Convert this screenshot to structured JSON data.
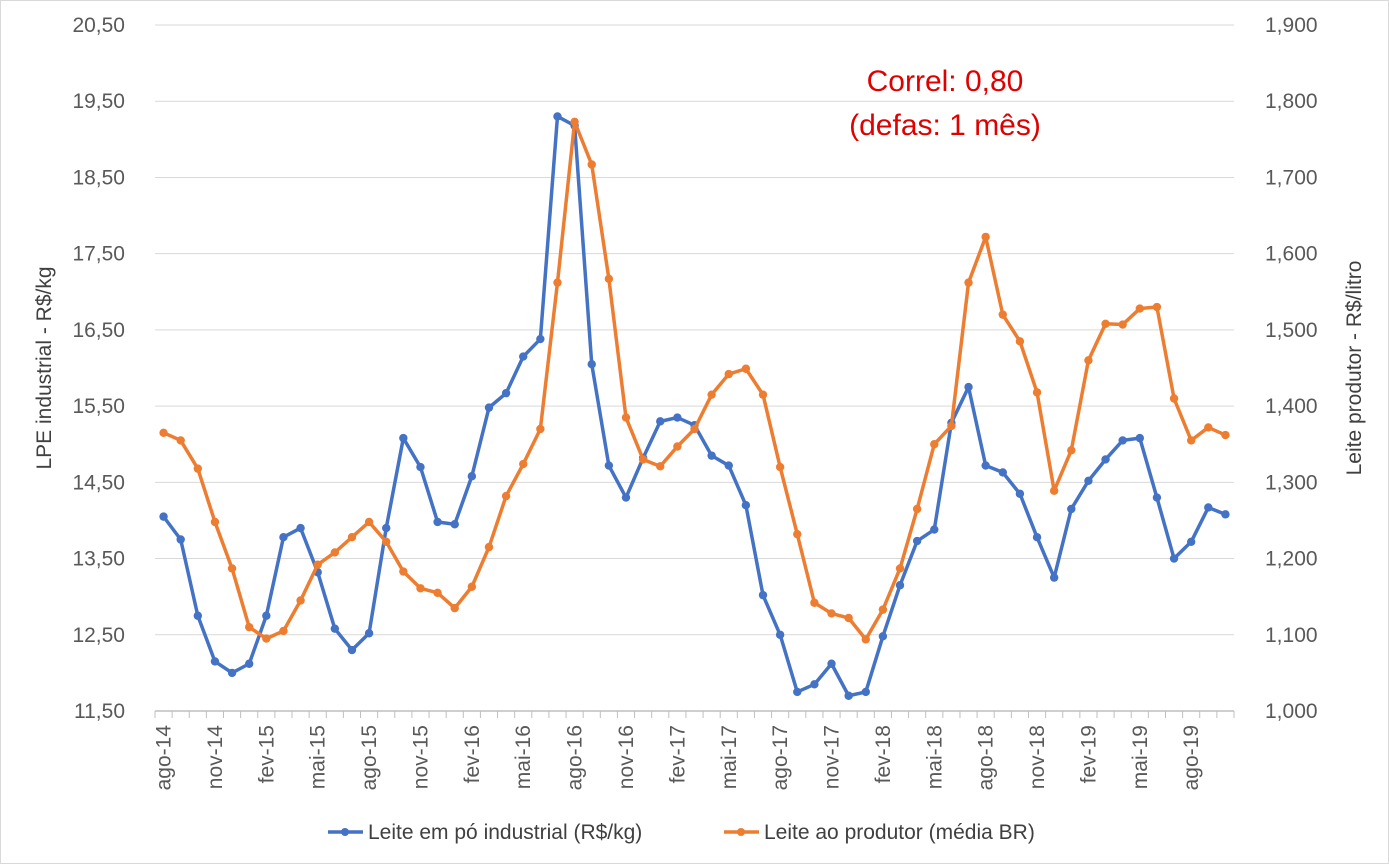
{
  "chart_data": {
    "type": "line",
    "annotation": [
      "Correl: 0,80",
      "(defas: 1 mês)"
    ],
    "y_left": {
      "label": "LPE industrial - R$/kg",
      "min": 11.5,
      "max": 20.5,
      "ticks": [
        "11,50",
        "12,50",
        "13,50",
        "14,50",
        "15,50",
        "16,50",
        "17,50",
        "18,50",
        "19,50",
        "20,50"
      ]
    },
    "y_right": {
      "label": "Leite produtor - R$/litro",
      "min": 1.0,
      "max": 1.9,
      "ticks": [
        "1,000",
        "1,100",
        "1,200",
        "1,300",
        "1,400",
        "1,500",
        "1,600",
        "1,700",
        "1,800",
        "1,900"
      ]
    },
    "grid": true,
    "legend_position": "bottom",
    "colors": {
      "series1": "#4472c4",
      "series2": "#ed7d31",
      "grid": "#d9d9d9"
    },
    "x": [
      "ago-14",
      "set-14",
      "out-14",
      "nov-14",
      "dez-14",
      "jan-15",
      "fev-15",
      "mar-15",
      "abr-15",
      "mai-15",
      "jun-15",
      "jul-15",
      "ago-15",
      "set-15",
      "out-15",
      "nov-15",
      "dez-15",
      "jan-16",
      "fev-16",
      "mar-16",
      "abr-16",
      "mai-16",
      "jun-16",
      "jul-16",
      "ago-16",
      "set-16",
      "out-16",
      "nov-16",
      "dez-16",
      "jan-17",
      "fev-17",
      "mar-17",
      "abr-17",
      "mai-17",
      "jun-17",
      "jul-17",
      "ago-17",
      "set-17",
      "out-17",
      "nov-17",
      "dez-17",
      "jan-18",
      "fev-18",
      "mar-18",
      "abr-18",
      "mai-18",
      "jun-18",
      "jul-18",
      "ago-18",
      "set-18",
      "out-18",
      "nov-18",
      "dez-18",
      "jan-19",
      "fev-19",
      "mar-19",
      "abr-19",
      "mai-19",
      "jun-19",
      "jul-19",
      "ago-19",
      "set-19",
      "out-19"
    ],
    "x_tick_labels": [
      "ago-14",
      "nov-14",
      "fev-15",
      "mai-15",
      "ago-15",
      "nov-15",
      "fev-16",
      "mai-16",
      "ago-16",
      "nov-16",
      "fev-17",
      "mai-17",
      "ago-17",
      "nov-17",
      "fev-18",
      "mai-18",
      "ago-18",
      "nov-18",
      "fev-19",
      "mai-19",
      "ago-19"
    ],
    "series": [
      {
        "name": "Leite em pó industrial (R$/kg)",
        "axis": "left",
        "values": [
          14.05,
          13.75,
          12.75,
          12.15,
          12.0,
          12.12,
          12.75,
          13.78,
          13.9,
          13.32,
          12.58,
          12.3,
          12.52,
          13.9,
          15.08,
          14.7,
          13.98,
          13.95,
          14.58,
          15.48,
          15.67,
          16.15,
          16.38,
          19.3,
          19.18,
          16.05,
          14.72,
          14.3,
          14.82,
          15.3,
          15.35,
          15.25,
          14.85,
          14.72,
          14.2,
          13.02,
          12.5,
          11.75,
          11.85,
          12.12,
          11.7,
          11.75,
          12.48,
          13.15,
          13.73,
          13.88,
          15.28,
          15.75,
          14.72,
          14.63,
          14.35,
          13.78,
          13.25,
          14.15,
          14.52,
          14.8,
          15.05,
          15.08,
          14.3,
          13.5,
          13.72,
          14.17,
          14.08
        ]
      },
      {
        "name": "Leite ao produtor (média BR)",
        "axis": "right",
        "values": [
          1.365,
          1.355,
          1.318,
          1.248,
          1.187,
          1.11,
          1.095,
          1.105,
          1.145,
          1.192,
          1.208,
          1.228,
          1.248,
          1.222,
          1.183,
          1.161,
          1.155,
          1.135,
          1.163,
          1.215,
          1.282,
          1.324,
          1.37,
          1.562,
          1.773,
          1.717,
          1.567,
          1.385,
          1.33,
          1.321,
          1.347,
          1.37,
          1.415,
          1.442,
          1.449,
          1.415,
          1.32,
          1.232,
          1.142,
          1.128,
          1.122,
          1.094,
          1.133,
          1.187,
          1.265,
          1.35,
          1.374,
          1.562,
          1.622,
          1.52,
          1.485,
          1.418,
          1.289,
          1.342,
          1.46,
          1.508,
          1.507,
          1.528,
          1.53,
          1.41,
          1.355,
          1.372,
          1.362
        ]
      }
    ]
  }
}
